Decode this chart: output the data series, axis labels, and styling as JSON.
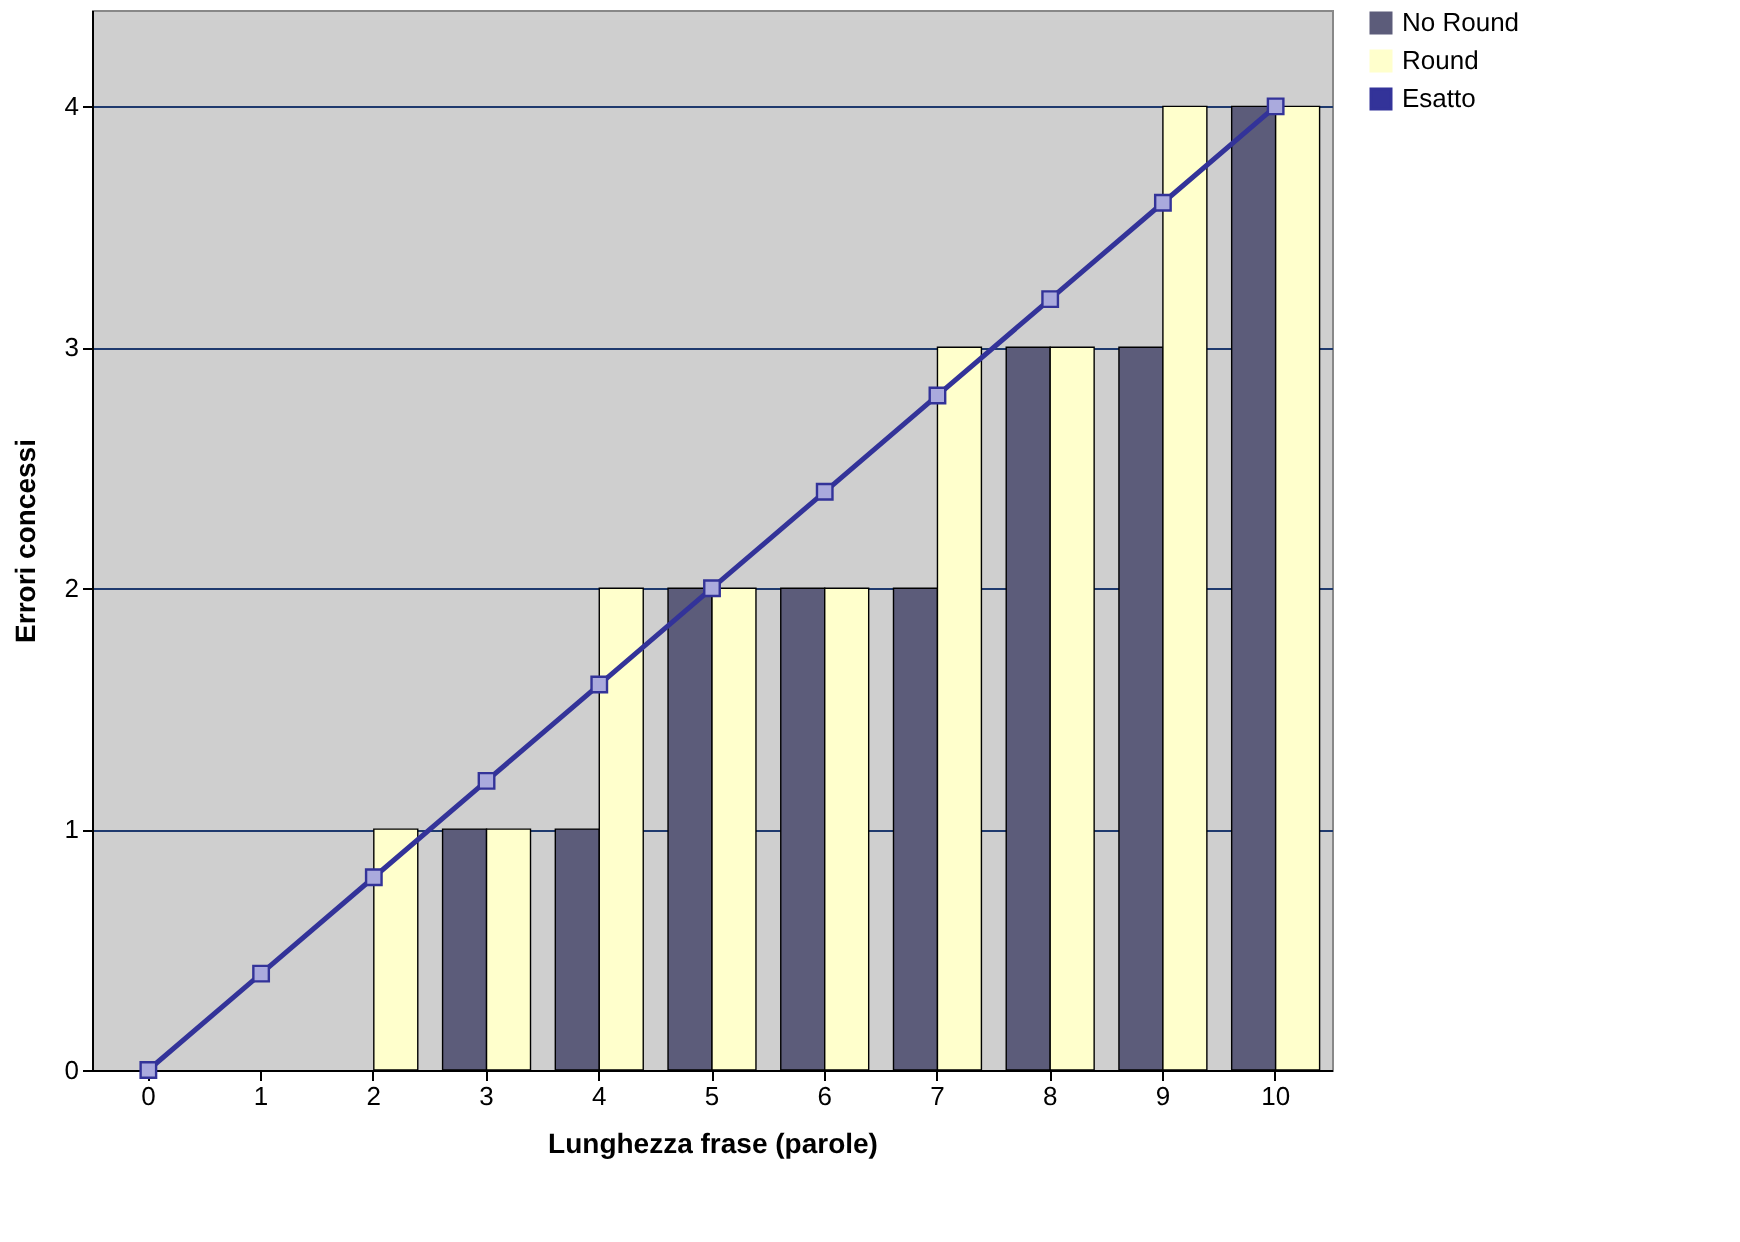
{
  "chart_data": {
    "type": "bar",
    "xlabel": "Lunghezza frase (parole)",
    "ylabel": "Errori concessi",
    "categories": [
      "0",
      "1",
      "2",
      "3",
      "4",
      "5",
      "6",
      "7",
      "8",
      "9",
      "10"
    ],
    "series": [
      {
        "name": "No Round",
        "color": "#5c5c7a",
        "values": [
          0,
          0,
          0,
          1,
          1,
          2,
          2,
          2,
          3,
          3,
          4
        ]
      },
      {
        "name": "Round",
        "color": "#ffffcc",
        "values": [
          0,
          0,
          1,
          1,
          2,
          2,
          2,
          3,
          3,
          4,
          4
        ]
      },
      {
        "name": "Esatto",
        "type": "line",
        "color": "#333399",
        "marker": "square",
        "values": [
          0,
          0.4,
          0.8,
          1.2,
          1.6,
          2,
          2.4,
          2.8,
          3.2,
          3.6,
          4
        ]
      }
    ],
    "ylim": [
      0,
      4.4
    ],
    "yticks": [
      0,
      1,
      2,
      3,
      4
    ],
    "grid": "y",
    "legend": "right"
  }
}
